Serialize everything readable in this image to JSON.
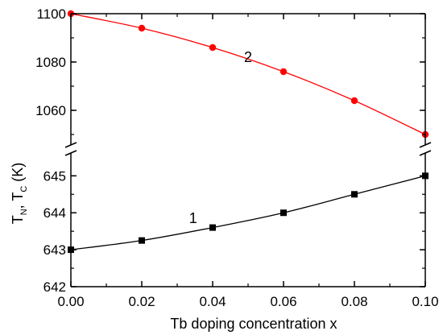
{
  "chart_data": {
    "type": "line",
    "xlabel": "Tb doping concentration x",
    "ylabel": {
      "main": "T",
      "sub1": "N",
      "sep": ", T",
      "sub2": "C",
      "unit": " (K)"
    },
    "xlim": [
      0.0,
      0.1
    ],
    "x_ticks": [
      "0.00",
      "0.02",
      "0.04",
      "0.06",
      "0.08",
      "0.10"
    ],
    "x_tick_values": [
      0.0,
      0.02,
      0.04,
      0.06,
      0.08,
      0.1
    ],
    "axis_break": true,
    "upper_panel": {
      "ylim": [
        1050,
        1100
      ],
      "y_ticks": [
        "1060",
        "1080",
        "1100"
      ],
      "y_tick_values": [
        1060,
        1080,
        1100
      ]
    },
    "lower_panel": {
      "ylim": [
        642,
        645.4
      ],
      "y_ticks": [
        "642",
        "643",
        "644",
        "645"
      ],
      "y_tick_values": [
        642,
        643,
        644,
        645
      ]
    },
    "series": [
      {
        "label": "2",
        "panel": "upper",
        "color": "#ff0000",
        "marker": "circle",
        "x": [
          0.0,
          0.02,
          0.04,
          0.06,
          0.08,
          0.1
        ],
        "y": [
          1100,
          1094,
          1086,
          1076,
          1064,
          1050
        ]
      },
      {
        "label": "1",
        "panel": "lower",
        "color": "#000000",
        "marker": "square",
        "x": [
          0.0,
          0.02,
          0.04,
          0.06,
          0.08,
          0.1
        ],
        "y": [
          643.0,
          643.25,
          643.6,
          644.0,
          644.5,
          645.0
        ]
      }
    ]
  }
}
